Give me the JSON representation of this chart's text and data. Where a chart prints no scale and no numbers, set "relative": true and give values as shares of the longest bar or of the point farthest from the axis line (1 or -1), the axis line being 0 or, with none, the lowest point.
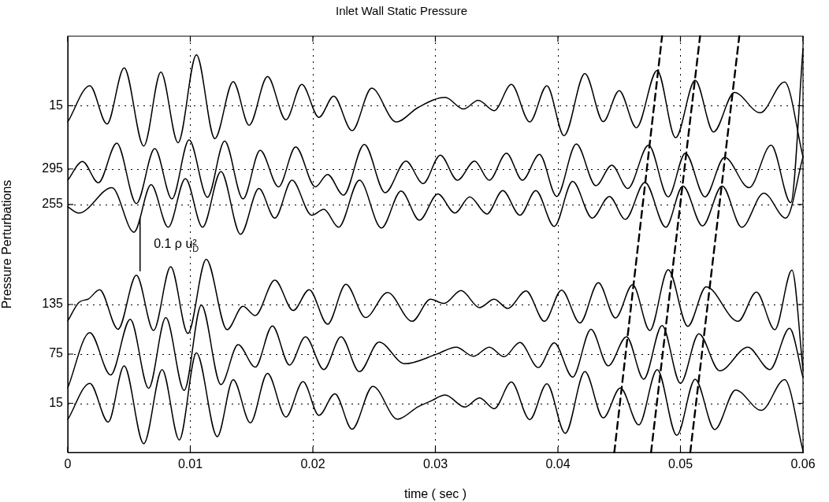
{
  "chart_data": {
    "type": "line",
    "title": "Inlet Wall Static Pressure",
    "xlabel": "time ( sec )",
    "ylabel": "Pressure Perturbations",
    "xlim": [
      0,
      0.06
    ],
    "xticks": [
      0,
      0.01,
      0.02,
      0.03,
      0.04,
      0.05,
      0.06
    ],
    "relative": true,
    "grid": true,
    "legend": "left",
    "marker": "none",
    "line_style": "solid",
    "series": [
      {
        "name": "15",
        "color": "#000000",
        "x": [
          0,
          0.0018,
          0.0032,
          0.0046,
          0.0062,
          0.0076,
          0.009,
          0.0105,
          0.012,
          0.0135,
          0.0148,
          0.0163,
          0.0178,
          0.0191,
          0.0205,
          0.0217,
          0.0232,
          0.0248,
          0.0268,
          0.0286,
          0.0308,
          0.0323,
          0.0335,
          0.0348,
          0.0362,
          0.0377,
          0.0391,
          0.0405,
          0.0422,
          0.0437,
          0.045,
          0.0464,
          0.0481,
          0.0496,
          0.0512,
          0.0527,
          0.0544,
          0.0565,
          0.0585,
          0.06
        ],
        "values": [
          0.794,
          0.881,
          0.789,
          0.924,
          0.736,
          0.914,
          0.744,
          0.955,
          0.754,
          0.891,
          0.786,
          0.903,
          0.799,
          0.884,
          0.805,
          0.856,
          0.773,
          0.875,
          0.794,
          0.829,
          0.853,
          0.825,
          0.846,
          0.821,
          0.884,
          0.794,
          0.881,
          0.761,
          0.91,
          0.795,
          0.869,
          0.78,
          0.918,
          0.756,
          0.894,
          0.77,
          0.865,
          0.816,
          0.89,
          0.71
        ]
      },
      {
        "name": "295",
        "color": "#000000",
        "x": [
          0,
          0.0012,
          0.0025,
          0.004,
          0.0056,
          0.0071,
          0.0085,
          0.0099,
          0.0114,
          0.0128,
          0.0143,
          0.0157,
          0.0172,
          0.0186,
          0.0202,
          0.0212,
          0.0225,
          0.0242,
          0.0259,
          0.0276,
          0.029,
          0.0304,
          0.0318,
          0.0332,
          0.0344,
          0.0358,
          0.0371,
          0.0385,
          0.0399,
          0.0415,
          0.0431,
          0.0444,
          0.0457,
          0.0474,
          0.049,
          0.0504,
          0.052,
          0.0536,
          0.0556,
          0.0574,
          0.059,
          0.06
        ],
        "values": [
          0.654,
          0.699,
          0.648,
          0.743,
          0.598,
          0.73,
          0.609,
          0.751,
          0.613,
          0.748,
          0.609,
          0.726,
          0.638,
          0.734,
          0.638,
          0.668,
          0.618,
          0.74,
          0.624,
          0.7,
          0.646,
          0.714,
          0.654,
          0.7,
          0.654,
          0.719,
          0.654,
          0.716,
          0.615,
          0.741,
          0.641,
          0.69,
          0.634,
          0.738,
          0.614,
          0.719,
          0.614,
          0.709,
          0.636,
          0.738,
          0.6,
          0.97
        ]
      },
      {
        "name": "255",
        "color": "#000000",
        "x": [
          0,
          0.0009,
          0.0036,
          0.0054,
          0.0068,
          0.0082,
          0.0096,
          0.011,
          0.0125,
          0.0141,
          0.0156,
          0.0169,
          0.0183,
          0.0199,
          0.0209,
          0.0221,
          0.0238,
          0.0256,
          0.0272,
          0.0287,
          0.0302,
          0.0316,
          0.0328,
          0.0342,
          0.0355,
          0.0369,
          0.0382,
          0.0397,
          0.0412,
          0.0428,
          0.0442,
          0.0455,
          0.0471,
          0.0488,
          0.0502,
          0.0518,
          0.0534,
          0.055,
          0.0568,
          0.0586,
          0.06
        ],
        "values": [
          0.59,
          0.575,
          0.636,
          0.529,
          0.643,
          0.541,
          0.658,
          0.541,
          0.675,
          0.524,
          0.634,
          0.563,
          0.654,
          0.57,
          0.584,
          0.541,
          0.654,
          0.539,
          0.628,
          0.558,
          0.621,
          0.575,
          0.614,
          0.573,
          0.629,
          0.57,
          0.629,
          0.543,
          0.651,
          0.563,
          0.615,
          0.56,
          0.649,
          0.541,
          0.64,
          0.544,
          0.64,
          0.541,
          0.623,
          0.563,
          0.71
        ]
      },
      {
        "name": "135",
        "color": "#000000",
        "x": [
          0,
          0.0009,
          0.0017,
          0.0026,
          0.0041,
          0.0056,
          0.007,
          0.0084,
          0.0098,
          0.0113,
          0.013,
          0.0143,
          0.0153,
          0.0169,
          0.0184,
          0.0197,
          0.0212,
          0.0227,
          0.0243,
          0.0261,
          0.0281,
          0.0296,
          0.0307,
          0.0321,
          0.0336,
          0.0348,
          0.0359,
          0.0374,
          0.0389,
          0.0403,
          0.0418,
          0.0433,
          0.0447,
          0.0461,
          0.0475,
          0.049,
          0.0506,
          0.0521,
          0.0547,
          0.0562,
          0.0577,
          0.0591,
          0.06
        ],
        "values": [
          0.316,
          0.36,
          0.369,
          0.391,
          0.296,
          0.426,
          0.293,
          0.446,
          0.286,
          0.464,
          0.295,
          0.351,
          0.329,
          0.414,
          0.341,
          0.391,
          0.308,
          0.404,
          0.324,
          0.384,
          0.315,
          0.368,
          0.358,
          0.389,
          0.348,
          0.368,
          0.346,
          0.388,
          0.315,
          0.39,
          0.311,
          0.408,
          0.323,
          0.403,
          0.293,
          0.439,
          0.303,
          0.398,
          0.315,
          0.385,
          0.295,
          0.438,
          0.199
        ]
      },
      {
        "name": "75",
        "color": "#000000",
        "x": [
          0,
          0.0018,
          0.0035,
          0.0051,
          0.0066,
          0.008,
          0.0095,
          0.0109,
          0.0125,
          0.0139,
          0.0153,
          0.0167,
          0.0181,
          0.0194,
          0.0209,
          0.0223,
          0.0238,
          0.0254,
          0.0275,
          0.0301,
          0.0317,
          0.0331,
          0.0344,
          0.0356,
          0.0369,
          0.0384,
          0.0397,
          0.0412,
          0.0427,
          0.0441,
          0.0456,
          0.047,
          0.0485,
          0.05,
          0.0515,
          0.0532,
          0.0555,
          0.0573,
          0.0589,
          0.06
        ],
        "values": [
          0.155,
          0.288,
          0.186,
          0.32,
          0.154,
          0.324,
          0.149,
          0.354,
          0.163,
          0.259,
          0.205,
          0.304,
          0.21,
          0.278,
          0.199,
          0.278,
          0.194,
          0.265,
          0.213,
          0.236,
          0.253,
          0.231,
          0.253,
          0.23,
          0.264,
          0.204,
          0.263,
          0.181,
          0.296,
          0.208,
          0.278,
          0.176,
          0.305,
          0.166,
          0.285,
          0.196,
          0.253,
          0.199,
          0.298,
          0.18
        ]
      },
      {
        "name": "15",
        "color": "#000000",
        "x": [
          0,
          0.0018,
          0.0033,
          0.0046,
          0.0062,
          0.0077,
          0.0091,
          0.0105,
          0.0122,
          0.0135,
          0.0149,
          0.0163,
          0.0178,
          0.0192,
          0.0205,
          0.0218,
          0.0232,
          0.0249,
          0.0269,
          0.0286,
          0.0296,
          0.0308,
          0.0324,
          0.0336,
          0.0348,
          0.0362,
          0.0377,
          0.0391,
          0.0406,
          0.0422,
          0.0437,
          0.0451,
          0.0466,
          0.0481,
          0.0497,
          0.0512,
          0.0528,
          0.0545,
          0.0566,
          0.0585,
          0.06
        ],
        "values": [
          0.079,
          0.166,
          0.073,
          0.208,
          0.021,
          0.199,
          0.03,
          0.239,
          0.038,
          0.175,
          0.071,
          0.19,
          0.085,
          0.17,
          0.089,
          0.141,
          0.056,
          0.159,
          0.08,
          0.11,
          0.123,
          0.138,
          0.109,
          0.131,
          0.105,
          0.169,
          0.079,
          0.165,
          0.046,
          0.194,
          0.083,
          0.155,
          0.066,
          0.199,
          0.041,
          0.176,
          0.055,
          0.15,
          0.101,
          0.175,
          0.004
        ]
      },
      {
        "color": "#000000",
        "line_style": "dashed",
        "x": [
          0.0446,
          0.0485
        ],
        "values": [
          0,
          1
        ]
      },
      {
        "color": "#000000",
        "line_style": "dashed",
        "x": [
          0.0476,
          0.0516
        ],
        "values": [
          0,
          1
        ]
      },
      {
        "color": "#000000",
        "line_style": "dashed",
        "x": [
          0.0508,
          0.0548
        ],
        "values": [
          0,
          1
        ]
      },
      {
        "color": "#000000",
        "x": [
          0.0059,
          0.0059
        ],
        "values": [
          0.436,
          0.561
        ]
      }
    ],
    "annotations": [
      "0.1 ρ u$_{D}$²"
    ]
  }
}
